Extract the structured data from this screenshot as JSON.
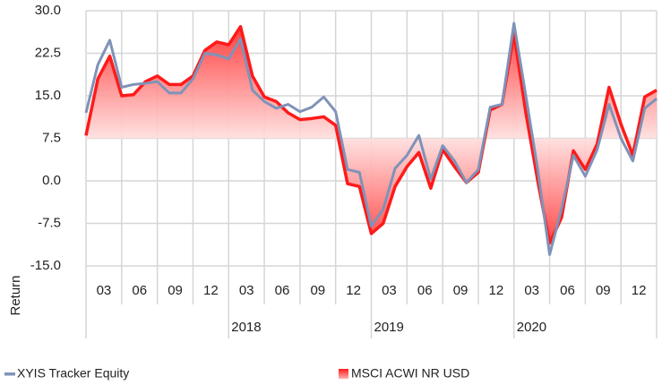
{
  "chart_data": {
    "type": "line",
    "ylabel": "Return",
    "ylim": [
      -15,
      30
    ],
    "yticks": [
      {
        "value": 30,
        "label": "30.0"
      },
      22.5,
      {
        "value": 15,
        "label": "15.0"
      },
      7.5,
      {
        "value": 0,
        "label": "0.0"
      },
      -7.5,
      {
        "value": -15,
        "label": "-15.0"
      }
    ],
    "grid": true,
    "area_baseline": 7.5,
    "quarter_labels": [
      "03",
      "06",
      "09",
      "12",
      "03",
      "06",
      "09",
      "12",
      "03",
      "06",
      "09",
      "12",
      "03",
      "06",
      "09",
      "12"
    ],
    "year_labels": [
      null,
      "2018",
      "2019",
      "2020"
    ],
    "series": [
      {
        "name": "XYIS Tracker Equity",
        "color": "#7f93b8",
        "style": "line",
        "values": [
          12,
          20.5,
          24.8,
          16.5,
          17,
          17.2,
          17.5,
          15.5,
          15.5,
          18,
          22.5,
          22.2,
          21.5,
          25,
          16,
          14,
          12.8,
          13.5,
          12.2,
          13,
          14.8,
          12.2,
          2,
          1.5,
          -8,
          -5,
          2.2,
          4.5,
          8,
          0.3,
          6.2,
          3.5,
          -0.3,
          2,
          13,
          13.5,
          27.8,
          15,
          2,
          -13,
          -5,
          4.5,
          0.8,
          5.5,
          13.5,
          7.5,
          3.5,
          12.8,
          14.5
        ]
      },
      {
        "name": "MSCI ACWI NR USD",
        "color": "#ff1a1a",
        "style": "area",
        "values": [
          8,
          18,
          22,
          15,
          15.2,
          17.5,
          18.5,
          17,
          17,
          18.5,
          23,
          24.5,
          24,
          27.2,
          18.5,
          14.8,
          14,
          12,
          10.8,
          11,
          11.3,
          9.8,
          -0.5,
          -1,
          -9.3,
          -7.5,
          -1,
          2.5,
          5,
          -1.3,
          5.5,
          2.5,
          -0.3,
          1.5,
          12.5,
          13.5,
          26,
          12,
          0,
          -11,
          -6.5,
          5.3,
          2,
          6.5,
          16.5,
          10,
          4.5,
          14.8,
          16
        ]
      }
    ]
  }
}
